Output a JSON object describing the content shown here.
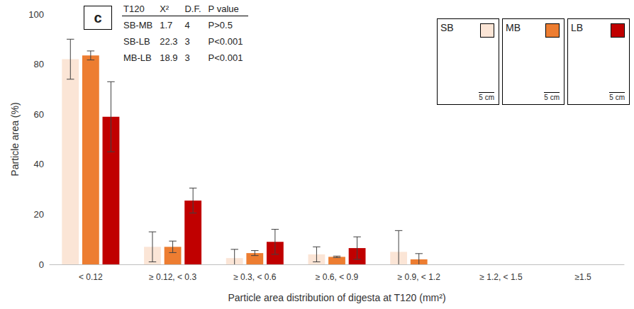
{
  "chart_data": {
    "type": "bar",
    "panel_label": "c",
    "categories": [
      "< 0.12",
      "≥ 0.12, < 0.3",
      "≥ 0.3, < 0.6",
      "≥ 0.6, < 0.9",
      "≥ 0.9, < 1.2",
      "≥ 1.2, < 1.5",
      "≥1.5"
    ],
    "series": [
      {
        "name": "SB",
        "color": "#fbe5d6",
        "values": [
          82,
          7,
          2.5,
          4,
          5,
          0,
          0
        ],
        "errors": [
          8,
          6,
          3.5,
          3,
          8.5,
          null,
          null
        ]
      },
      {
        "name": "MB",
        "color": "#ed7d31",
        "values": [
          83.5,
          7,
          4.5,
          3,
          2,
          0,
          0
        ],
        "errors": [
          1.8,
          2.3,
          1,
          0.3,
          2.3,
          null,
          null
        ]
      },
      {
        "name": "LB",
        "color": "#c00000",
        "values": [
          59,
          25.5,
          9,
          6.5,
          0,
          0,
          0
        ],
        "errors": [
          14,
          5,
          5,
          4.5,
          null,
          null,
          null
        ]
      }
    ],
    "x_label": "Particle area distribution of digesta at T120 (mm²)",
    "y_label": "Particle area (%)",
    "ylim": [
      0,
      100
    ],
    "yticks": [
      0,
      20,
      40,
      60,
      80,
      100
    ],
    "grid": false,
    "stats_table": {
      "header": [
        "T120",
        "X²",
        "D.F.",
        "P value"
      ],
      "rows": [
        [
          "SB-MB",
          1.7,
          4,
          "P>0.5"
        ],
        [
          "SB-LB",
          22.3,
          3,
          "P<0.001"
        ],
        [
          "MB-LB",
          18.9,
          3,
          "P<0.001"
        ]
      ]
    },
    "insets": {
      "scale_bar": "5 cm"
    }
  }
}
